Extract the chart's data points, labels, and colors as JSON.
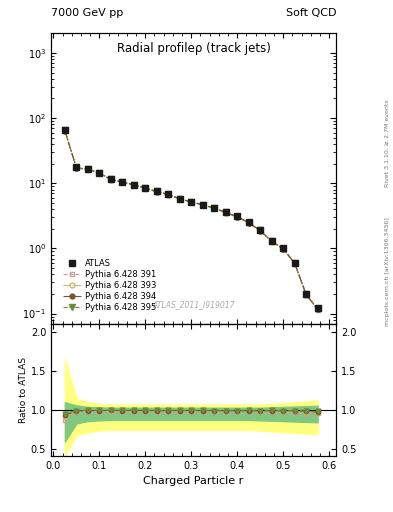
{
  "title_top_left": "7000 GeV pp",
  "title_top_right": "Soft QCD",
  "main_title": "Radial profileρ (track jets)",
  "watermark": "ATLAS_2011_I919017",
  "right_label_top": "Rivet 3.1.10, ≥ 2.7M events",
  "right_label_bottom": "mcplots.cern.ch [arXiv:1306.3436]",
  "xlabel": "Charged Particle r",
  "ylabel_ratio": "Ratio to ATLAS",
  "x_data": [
    0.025,
    0.05,
    0.075,
    0.1,
    0.125,
    0.15,
    0.175,
    0.2,
    0.225,
    0.25,
    0.275,
    0.3,
    0.325,
    0.35,
    0.375,
    0.4,
    0.425,
    0.45,
    0.475,
    0.5,
    0.525,
    0.55,
    0.575
  ],
  "atlas_y": [
    65.0,
    17.5,
    16.5,
    14.5,
    11.5,
    10.5,
    9.5,
    8.5,
    7.5,
    6.8,
    5.8,
    5.2,
    4.7,
    4.2,
    3.6,
    3.1,
    2.5,
    1.9,
    1.3,
    1.0,
    0.6,
    0.2,
    0.12
  ],
  "py391_y": [
    63.0,
    17.0,
    16.2,
    14.2,
    11.3,
    10.3,
    9.3,
    8.3,
    7.3,
    6.6,
    5.7,
    5.1,
    4.6,
    4.1,
    3.5,
    3.0,
    2.45,
    1.85,
    1.27,
    0.97,
    0.58,
    0.19,
    0.115
  ],
  "py393_y": [
    63.5,
    17.2,
    16.3,
    14.3,
    11.4,
    10.4,
    9.4,
    8.4,
    7.4,
    6.7,
    5.75,
    5.15,
    4.65,
    4.15,
    3.55,
    3.05,
    2.47,
    1.87,
    1.28,
    0.98,
    0.59,
    0.195,
    0.116
  ],
  "py394_y": [
    64.0,
    17.3,
    16.4,
    14.4,
    11.45,
    10.45,
    9.45,
    8.45,
    7.45,
    6.75,
    5.77,
    5.17,
    4.67,
    4.17,
    3.57,
    3.07,
    2.48,
    1.88,
    1.29,
    0.99,
    0.595,
    0.197,
    0.117
  ],
  "py395_y": [
    64.5,
    17.4,
    16.45,
    14.45,
    11.48,
    10.48,
    9.48,
    8.48,
    7.48,
    6.78,
    5.78,
    5.18,
    4.68,
    4.18,
    3.58,
    3.08,
    2.49,
    1.89,
    1.295,
    0.995,
    0.597,
    0.198,
    0.118
  ],
  "ratio_391": [
    0.88,
    0.97,
    0.98,
    0.98,
    0.98,
    0.98,
    0.98,
    0.98,
    0.97,
    0.97,
    0.98,
    0.98,
    0.98,
    0.98,
    0.97,
    0.97,
    0.98,
    0.975,
    0.977,
    0.97,
    0.967,
    0.95,
    0.96
  ],
  "ratio_393": [
    0.915,
    0.983,
    0.988,
    0.986,
    0.991,
    0.99,
    0.989,
    0.988,
    0.987,
    0.985,
    0.991,
    0.99,
    0.989,
    0.988,
    0.986,
    0.984,
    0.988,
    0.984,
    0.985,
    0.98,
    0.983,
    0.975,
    0.967
  ],
  "ratio_394": [
    0.935,
    0.989,
    0.994,
    0.993,
    0.996,
    0.995,
    0.995,
    0.994,
    0.993,
    0.993,
    0.995,
    0.994,
    0.994,
    0.993,
    0.992,
    0.99,
    0.992,
    0.989,
    0.992,
    0.99,
    0.992,
    0.985,
    0.975
  ],
  "ratio_395": [
    0.952,
    0.994,
    0.997,
    0.997,
    0.998,
    0.998,
    0.998,
    0.998,
    0.997,
    0.997,
    0.997,
    0.997,
    0.997,
    0.995,
    0.994,
    0.994,
    0.996,
    0.995,
    0.996,
    0.995,
    0.995,
    0.99,
    0.983
  ],
  "band_yellow_upper": [
    1.65,
    1.15,
    1.1,
    1.08,
    1.07,
    1.07,
    1.07,
    1.07,
    1.07,
    1.07,
    1.07,
    1.07,
    1.07,
    1.07,
    1.07,
    1.07,
    1.07,
    1.07,
    1.08,
    1.09,
    1.1,
    1.11,
    1.12
  ],
  "band_yellow_lower": [
    0.42,
    0.68,
    0.72,
    0.74,
    0.75,
    0.75,
    0.75,
    0.75,
    0.75,
    0.75,
    0.75,
    0.75,
    0.75,
    0.75,
    0.75,
    0.75,
    0.75,
    0.74,
    0.73,
    0.72,
    0.71,
    0.7,
    0.69
  ],
  "band_green_upper": [
    1.1,
    1.06,
    1.04,
    1.035,
    1.03,
    1.03,
    1.03,
    1.03,
    1.03,
    1.03,
    1.03,
    1.03,
    1.03,
    1.03,
    1.03,
    1.03,
    1.03,
    1.03,
    1.035,
    1.04,
    1.045,
    1.05,
    1.055
  ],
  "band_green_lower": [
    0.6,
    0.83,
    0.86,
    0.87,
    0.875,
    0.875,
    0.875,
    0.875,
    0.875,
    0.875,
    0.875,
    0.875,
    0.875,
    0.875,
    0.875,
    0.875,
    0.875,
    0.87,
    0.865,
    0.86,
    0.855,
    0.85,
    0.845
  ],
  "atlas_color": "#1a1a1a",
  "py391_color": "#c8a0a0",
  "py393_color": "#c8b870",
  "py394_color": "#7a5030",
  "py395_color": "#6b8c3a",
  "band_yellow_color": "#ffff80",
  "band_green_color": "#80c880",
  "ylim_main": [
    0.07,
    2000
  ],
  "ylim_ratio": [
    0.42,
    2.1
  ],
  "xlim": [
    -0.005,
    0.615
  ],
  "yticks_ratio": [
    0.5,
    1.0,
    1.5,
    2.0
  ],
  "xticks": [
    0.0,
    0.1,
    0.2,
    0.3,
    0.4,
    0.5,
    0.6
  ]
}
